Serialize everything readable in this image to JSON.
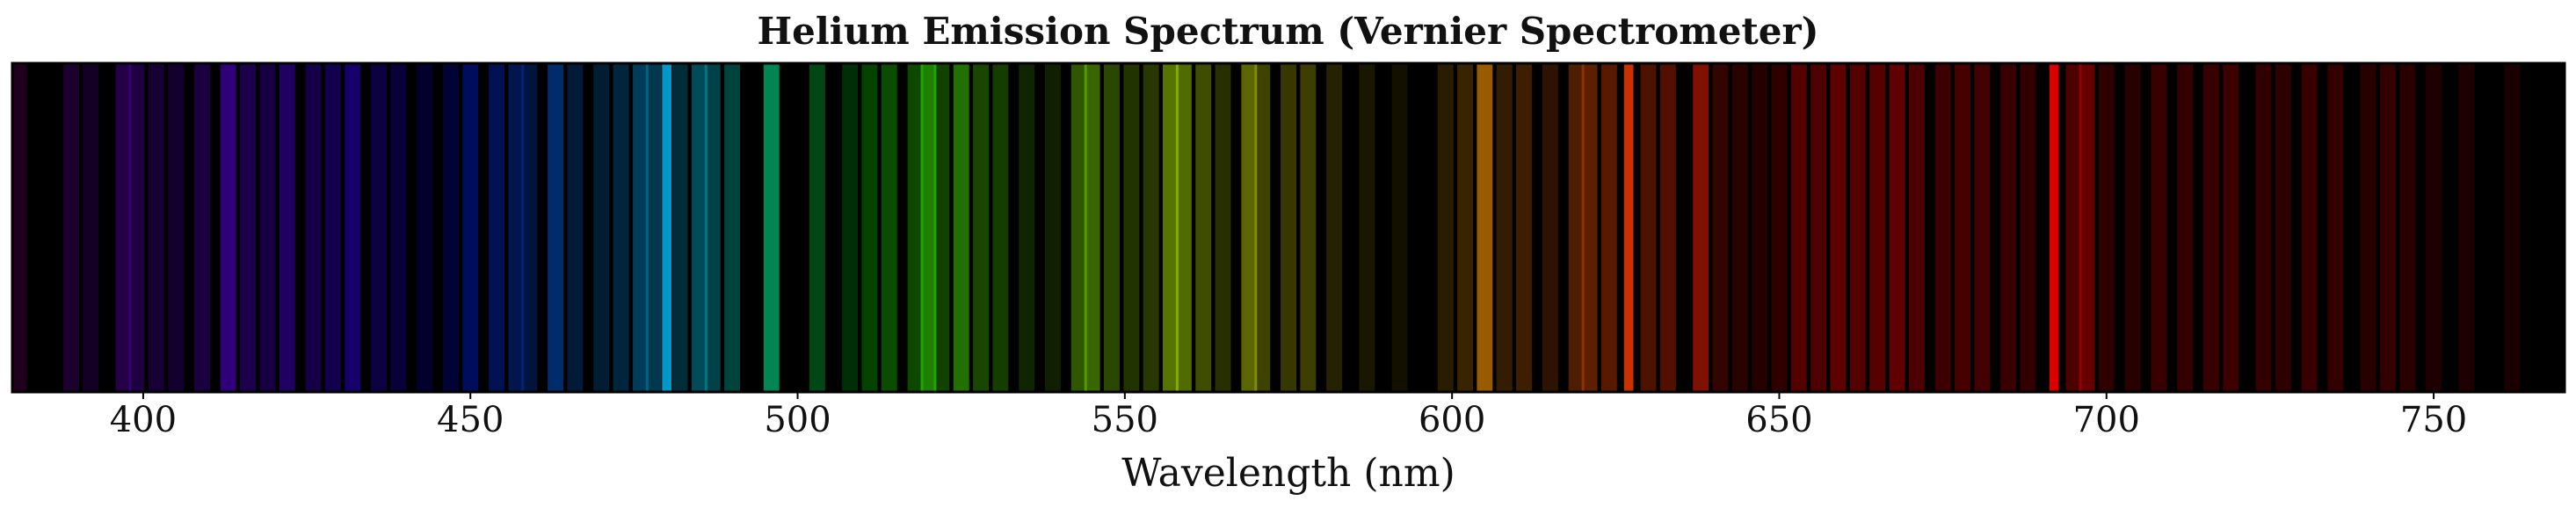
{
  "chart_data": {
    "type": "spectrum",
    "title": "Helium Emission Spectrum (Vernier Spectrometer)",
    "xlabel": "Wavelength (nm)",
    "ylabel": "",
    "xlim": [
      380,
      770
    ],
    "x_ticks": [
      400,
      450,
      500,
      550,
      600,
      650,
      700,
      750
    ],
    "background_color": "#000000",
    "grid": false,
    "legend": "none",
    "lines": [
      {
        "wavelength": 381,
        "color": "#ff00ff",
        "intensity": 0.12
      },
      {
        "wavelength": 389,
        "color": "#9b00ff",
        "intensity": 0.18
      },
      {
        "wavelength": 392,
        "color": "#8a00ff",
        "intensity": 0.14
      },
      {
        "wavelength": 397,
        "color": "#8000ff",
        "intensity": 0.28
      },
      {
        "wavelength": 399,
        "color": "#7a00ff",
        "intensity": 0.24
      },
      {
        "wavelength": 402,
        "color": "#7300ff",
        "intensity": 0.2
      },
      {
        "wavelength": 405,
        "color": "#6e00ff",
        "intensity": 0.18
      },
      {
        "wavelength": 409,
        "color": "#6a00ff",
        "intensity": 0.25
      },
      {
        "wavelength": 413,
        "color": "#6400ff",
        "intensity": 0.48
      },
      {
        "wavelength": 416,
        "color": "#6000ff",
        "intensity": 0.3
      },
      {
        "wavelength": 419,
        "color": "#5a00ff",
        "intensity": 0.26
      },
      {
        "wavelength": 422,
        "color": "#5400ff",
        "intensity": 0.38
      },
      {
        "wavelength": 426,
        "color": "#4a00ff",
        "intensity": 0.28
      },
      {
        "wavelength": 429,
        "color": "#4000ff",
        "intensity": 0.3
      },
      {
        "wavelength": 432,
        "color": "#3a00ff",
        "intensity": 0.42
      },
      {
        "wavelength": 436,
        "color": "#2e00ff",
        "intensity": 0.26
      },
      {
        "wavelength": 439,
        "color": "#2400ff",
        "intensity": 0.22
      },
      {
        "wavelength": 443,
        "color": "#1800ff",
        "intensity": 0.18
      },
      {
        "wavelength": 447,
        "color": "#0010ff",
        "intensity": 0.2
      },
      {
        "wavelength": 450,
        "color": "#0020ff",
        "intensity": 0.36
      },
      {
        "wavelength": 454,
        "color": "#0036ff",
        "intensity": 0.32
      },
      {
        "wavelength": 457,
        "color": "#0048ff",
        "intensity": 0.3
      },
      {
        "wavelength": 459,
        "color": "#0052ff",
        "intensity": 0.24
      },
      {
        "wavelength": 463,
        "color": "#0068ff",
        "intensity": 0.42
      },
      {
        "wavelength": 466,
        "color": "#0078ff",
        "intensity": 0.22
      },
      {
        "wavelength": 470,
        "color": "#0090ff",
        "intensity": 0.2
      },
      {
        "wavelength": 473,
        "color": "#00a0ff",
        "intensity": 0.24
      },
      {
        "wavelength": 476,
        "color": "#00b0ff",
        "intensity": 0.34
      },
      {
        "wavelength": 478,
        "color": "#00baff",
        "intensity": 0.3
      },
      {
        "wavelength": 480,
        "color": "#00c4ff",
        "intensity": 0.78
      },
      {
        "wavelength": 482,
        "color": "#00ccff",
        "intensity": 0.22
      },
      {
        "wavelength": 485,
        "color": "#00dcff",
        "intensity": 0.34
      },
      {
        "wavelength": 487,
        "color": "#00e6ff",
        "intensity": 0.28
      },
      {
        "wavelength": 490,
        "color": "#00ffe8",
        "intensity": 0.26
      },
      {
        "wavelength": 496,
        "color": "#00ffa0",
        "intensity": 0.52
      },
      {
        "wavelength": 503,
        "color": "#00ff50",
        "intensity": 0.28
      },
      {
        "wavelength": 508,
        "color": "#00ff20",
        "intensity": 0.18
      },
      {
        "wavelength": 511,
        "color": "#10ff00",
        "intensity": 0.26
      },
      {
        "wavelength": 514,
        "color": "#20ff00",
        "intensity": 0.3
      },
      {
        "wavelength": 518,
        "color": "#30ff00",
        "intensity": 0.28
      },
      {
        "wavelength": 520,
        "color": "#38ff00",
        "intensity": 0.5
      },
      {
        "wavelength": 522,
        "color": "#40ff00",
        "intensity": 0.26
      },
      {
        "wavelength": 525,
        "color": "#4aff00",
        "intensity": 0.44
      },
      {
        "wavelength": 528,
        "color": "#52ff00",
        "intensity": 0.28
      },
      {
        "wavelength": 531,
        "color": "#5cff00",
        "intensity": 0.24
      },
      {
        "wavelength": 535,
        "color": "#6cff00",
        "intensity": 0.14
      },
      {
        "wavelength": 539,
        "color": "#78ff00",
        "intensity": 0.12
      },
      {
        "wavelength": 543,
        "color": "#88ff00",
        "intensity": 0.34
      },
      {
        "wavelength": 545,
        "color": "#90ff00",
        "intensity": 0.4
      },
      {
        "wavelength": 548,
        "color": "#98ff00",
        "intensity": 0.28
      },
      {
        "wavelength": 551,
        "color": "#a4ff00",
        "intensity": 0.2
      },
      {
        "wavelength": 554,
        "color": "#b0ff00",
        "intensity": 0.22
      },
      {
        "wavelength": 557,
        "color": "#bcff00",
        "intensity": 0.45
      },
      {
        "wavelength": 559,
        "color": "#c4ff00",
        "intensity": 0.42
      },
      {
        "wavelength": 562,
        "color": "#ccff00",
        "intensity": 0.3
      },
      {
        "wavelength": 565,
        "color": "#d8ff00",
        "intensity": 0.18
      },
      {
        "wavelength": 569,
        "color": "#e4ff00",
        "intensity": 0.4
      },
      {
        "wavelength": 571,
        "color": "#eaff00",
        "intensity": 0.26
      },
      {
        "wavelength": 575,
        "color": "#f6ff00",
        "intensity": 0.22
      },
      {
        "wavelength": 578,
        "color": "#ffff00",
        "intensity": 0.24
      },
      {
        "wavelength": 582,
        "color": "#fff000",
        "intensity": 0.14
      },
      {
        "wavelength": 587,
        "color": "#ffe000",
        "intensity": 0.1
      },
      {
        "wavelength": 592,
        "color": "#ffcc00",
        "intensity": 0.08
      },
      {
        "wavelength": 599,
        "color": "#ffb000",
        "intensity": 0.16
      },
      {
        "wavelength": 602,
        "color": "#ffa400",
        "intensity": 0.22
      },
      {
        "wavelength": 605,
        "color": "#ff9800",
        "intensity": 0.6
      },
      {
        "wavelength": 608,
        "color": "#ff8c00",
        "intensity": 0.2
      },
      {
        "wavelength": 611,
        "color": "#ff8000",
        "intensity": 0.24
      },
      {
        "wavelength": 615,
        "color": "#ff7000",
        "intensity": 0.18
      },
      {
        "wavelength": 619,
        "color": "#ff6000",
        "intensity": 0.3
      },
      {
        "wavelength": 621,
        "color": "#ff5800",
        "intensity": 0.36
      },
      {
        "wavelength": 624,
        "color": "#ff4c00",
        "intensity": 0.34
      },
      {
        "wavelength": 627,
        "color": "#ff4000",
        "intensity": 0.78
      },
      {
        "wavelength": 630,
        "color": "#ff3800",
        "intensity": 0.3
      },
      {
        "wavelength": 633,
        "color": "#ff3000",
        "intensity": 0.32
      },
      {
        "wavelength": 638,
        "color": "#ff2000",
        "intensity": 0.5
      },
      {
        "wavelength": 641,
        "color": "#ff1800",
        "intensity": 0.2
      },
      {
        "wavelength": 644,
        "color": "#ff1000",
        "intensity": 0.16
      },
      {
        "wavelength": 647,
        "color": "#ff0800",
        "intensity": 0.14
      },
      {
        "wavelength": 650,
        "color": "#ff0000",
        "intensity": 0.18
      },
      {
        "wavelength": 653,
        "color": "#ff0000",
        "intensity": 0.32
      },
      {
        "wavelength": 656,
        "color": "#ff0000",
        "intensity": 0.3
      },
      {
        "wavelength": 659,
        "color": "#ff0000",
        "intensity": 0.36
      },
      {
        "wavelength": 662,
        "color": "#ff0000",
        "intensity": 0.32
      },
      {
        "wavelength": 665,
        "color": "#ff0000",
        "intensity": 0.34
      },
      {
        "wavelength": 668,
        "color": "#ff0000",
        "intensity": 0.38
      },
      {
        "wavelength": 671,
        "color": "#ff0000",
        "intensity": 0.3
      },
      {
        "wavelength": 675,
        "color": "#ff0000",
        "intensity": 0.24
      },
      {
        "wavelength": 678,
        "color": "#ff0000",
        "intensity": 0.28
      },
      {
        "wavelength": 681,
        "color": "#ff0000",
        "intensity": 0.26
      },
      {
        "wavelength": 685,
        "color": "#ff0000",
        "intensity": 0.22
      },
      {
        "wavelength": 688,
        "color": "#ff0000",
        "intensity": 0.2
      },
      {
        "wavelength": 692,
        "color": "#ff0000",
        "intensity": 0.85
      },
      {
        "wavelength": 695,
        "color": "#ff0000",
        "intensity": 0.3
      },
      {
        "wavelength": 697,
        "color": "#ff0000",
        "intensity": 0.4
      },
      {
        "wavelength": 700,
        "color": "#ff0000",
        "intensity": 0.18
      },
      {
        "wavelength": 704,
        "color": "#ff0000",
        "intensity": 0.16
      },
      {
        "wavelength": 708,
        "color": "#ff0000",
        "intensity": 0.22
      },
      {
        "wavelength": 712,
        "color": "#ff0000",
        "intensity": 0.2
      },
      {
        "wavelength": 716,
        "color": "#ff0000",
        "intensity": 0.22
      },
      {
        "wavelength": 719,
        "color": "#ff0000",
        "intensity": 0.24
      },
      {
        "wavelength": 724,
        "color": "#ff0000",
        "intensity": 0.2
      },
      {
        "wavelength": 727,
        "color": "#ff0000",
        "intensity": 0.18
      },
      {
        "wavelength": 731,
        "color": "#ff0000",
        "intensity": 0.22
      },
      {
        "wavelength": 735,
        "color": "#ff0000",
        "intensity": 0.2
      },
      {
        "wavelength": 740,
        "color": "#ff0000",
        "intensity": 0.16
      },
      {
        "wavelength": 743,
        "color": "#ff0000",
        "intensity": 0.2
      },
      {
        "wavelength": 746,
        "color": "#ff0000",
        "intensity": 0.16
      },
      {
        "wavelength": 750,
        "color": "#ff0000",
        "intensity": 0.12
      },
      {
        "wavelength": 755,
        "color": "#ff0000",
        "intensity": 0.12
      },
      {
        "wavelength": 762,
        "color": "#ff0000",
        "intensity": 0.1
      }
    ]
  }
}
